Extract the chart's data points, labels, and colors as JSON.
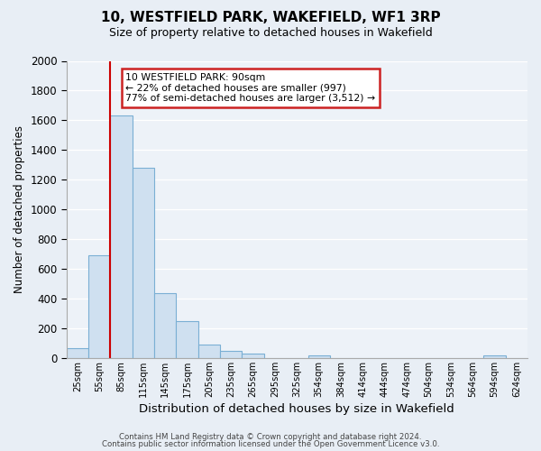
{
  "title": "10, WESTFIELD PARK, WAKEFIELD, WF1 3RP",
  "subtitle": "Size of property relative to detached houses in Wakefield",
  "xlabel": "Distribution of detached houses by size in Wakefield",
  "ylabel": "Number of detached properties",
  "bar_labels": [
    "25sqm",
    "55sqm",
    "85sqm",
    "115sqm",
    "145sqm",
    "175sqm",
    "205sqm",
    "235sqm",
    "265sqm",
    "295sqm",
    "325sqm",
    "354sqm",
    "384sqm",
    "414sqm",
    "444sqm",
    "474sqm",
    "504sqm",
    "534sqm",
    "564sqm",
    "594sqm",
    "624sqm"
  ],
  "bar_values": [
    65,
    690,
    1630,
    1280,
    435,
    250,
    90,
    50,
    30,
    0,
    0,
    20,
    0,
    0,
    0,
    0,
    0,
    0,
    0,
    20,
    0
  ],
  "bar_color": "#cfe0f0",
  "bar_edgecolor": "#7aafd4",
  "red_line_index": 2,
  "property_label": "10 WESTFIELD PARK: 90sqm",
  "ann_line1": "10 WESTFIELD PARK: 90sqm",
  "ann_line2": "← 22% of detached houses are smaller (997)",
  "ann_line3": "77% of semi-detached houses are larger (3,512) →",
  "ylim": [
    0,
    2000
  ],
  "yticks": [
    0,
    200,
    400,
    600,
    800,
    1000,
    1200,
    1400,
    1600,
    1800,
    2000
  ],
  "fig_bg_color": "#e8eef5",
  "plot_bg_color": "#edf2f8",
  "grid_color": "#ffffff",
  "ann_box_facecolor": "#ffffff",
  "ann_box_edgecolor": "#cc2222",
  "footer1": "Contains HM Land Registry data © Crown copyright and database right 2024.",
  "footer2": "Contains public sector information licensed under the Open Government Licence v3.0."
}
